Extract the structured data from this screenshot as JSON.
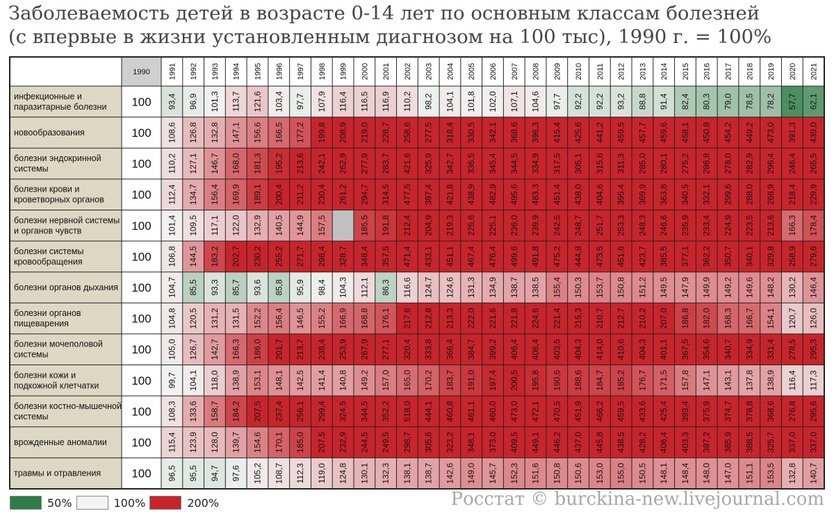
{
  "title": {
    "line1": "Заболеваемость детей в возрасте 0-14 лет по основным классам болезней",
    "line2": "(с впервые в жизни установленным диагнозом на 100 тыс), 1990 г. = 100%"
  },
  "chart_data": {
    "type": "heatmap",
    "base_header": "1990",
    "base_value": "100",
    "years": [
      "1991",
      "1992",
      "1993",
      "1994",
      "1995",
      "1996",
      "1997",
      "1998",
      "1999",
      "2000",
      "2001",
      "2002",
      "2003",
      "2004",
      "2005",
      "2006",
      "2007",
      "2008",
      "2009",
      "2010",
      "2011",
      "2012",
      "2013",
      "2014",
      "2015",
      "2016",
      "2017",
      "2018",
      "2019",
      "2020",
      "2021"
    ],
    "rows": [
      {
        "label": "инфекционные и паразитарные болезни",
        "values": [
          "93,4",
          "96,9",
          "101,3",
          "113,7",
          "121,6",
          "103,4",
          "97,7",
          "107,9",
          "116,4",
          "116,5",
          "116,9",
          "110,2",
          "98,2",
          "104,1",
          "101,8",
          "102,0",
          "107,1",
          "104,6",
          "97,7",
          "92,2",
          "92,2",
          "93,2",
          "88,8",
          "91,4",
          "82,4",
          "80,3",
          "79,0",
          "78,5",
          "78,2",
          "57,7",
          "62,1"
        ]
      },
      {
        "label": "новообразования",
        "values": [
          "108,6",
          "126,8",
          "132,8",
          "147,1",
          "156,6",
          "166,5",
          "177,2",
          "199,8",
          "208,9",
          "219,0",
          "228,7",
          "258,6",
          "277,5",
          "318,4",
          "330,5",
          "342,1",
          "368,6",
          "396,3",
          "415,4",
          "425,6",
          "441,2",
          "459,5",
          "457,7",
          "459,6",
          "458,1",
          "450,8",
          "454,2",
          "449,2",
          "473,0",
          "391,3",
          "439,0"
        ]
      },
      {
        "label": "болезни эндокринной системы",
        "values": [
          "110,2",
          "127,1",
          "146,7",
          "168,0",
          "181,3",
          "195,2",
          "213,6",
          "242,1",
          "262,9",
          "277,9",
          "283,7",
          "421,6",
          "325,9",
          "342,7",
          "336,5",
          "345,4",
          "344,5",
          "334,9",
          "317,5",
          "305,1",
          "315,6",
          "311,3",
          "285,0",
          "280,1",
          "275,2",
          "286,8",
          "278,0",
          "282,9",
          "296,4",
          "246,4",
          "265,5"
        ]
      },
      {
        "label": "болезни крови и кроветворных органов",
        "values": [
          "112,4",
          "134,7",
          "156,4",
          "169,9",
          "189,1",
          "200,4",
          "211,2",
          "230,4",
          "261,2",
          "294,7",
          "314,5",
          "477,5",
          "397,4",
          "421,8",
          "438,9",
          "482,9",
          "495,6",
          "483,3",
          "451,4",
          "438,0",
          "404,6",
          "395,4",
          "369,9",
          "363,8",
          "340,5",
          "332,1",
          "299,6",
          "288,0",
          "268,9",
          "218,4",
          "229,9"
        ]
      },
      {
        "label": "болезни нервной системы и органов чувств",
        "values": [
          "101,4",
          "109,5",
          "117,1",
          "122,0",
          "132,9",
          "140,5",
          "144,9",
          "157,5",
          "",
          "185,5",
          "191,8",
          "212,4",
          "204,9",
          "219,3",
          "225,6",
          "225,1",
          "236,0",
          "239,9",
          "242,5",
          "248,7",
          "251,7",
          "253,3",
          "248,3",
          "246,6",
          "235,9",
          "233,4",
          "224,9",
          "223,5",
          "213,6",
          "166,3",
          "178,4"
        ]
      },
      {
        "label": "болезни системы кровообращения",
        "values": [
          "106,8",
          "144,5",
          "183,2",
          "202,7",
          "230,2",
          "255,2",
          "271,7",
          "298,4",
          "328,7",
          "348,4",
          "357,5",
          "471,4",
          "433,1",
          "451,1",
          "467,4",
          "476,4",
          "499,6",
          "491,8",
          "475,2",
          "444,8",
          "473,5",
          "451,6",
          "423,7",
          "385,5",
          "377,1",
          "362,2",
          "350,7",
          "340,1",
          "329,8",
          "258,9",
          "279,6"
        ]
      },
      {
        "label": "болезни органов дыхания",
        "values": [
          "104,7",
          "85,5",
          "93,3",
          "85,7",
          "93,6",
          "85,8",
          "95,9",
          "98,4",
          "104,3",
          "112,1",
          "86,3",
          "116,6",
          "124,7",
          "124,6",
          "131,3",
          "134,9",
          "138,7",
          "138,5",
          "155,4",
          "150,3",
          "153,7",
          "150,8",
          "151,2",
          "149,5",
          "147,9",
          "149,9",
          "149,2",
          "149,6",
          "148,2",
          "130,2",
          "146,4"
        ]
      },
      {
        "label": "болезни органов пищеварения",
        "values": [
          "104,8",
          "120,5",
          "131,2",
          "131,5",
          "152,2",
          "156,4",
          "146,5",
          "155,2",
          "166,9",
          "168,8",
          "176,1",
          "217,6",
          "212,8",
          "213,3",
          "222,0",
          "221,6",
          "221,8",
          "224,6",
          "221,4",
          "215,3",
          "210,7",
          "212,7",
          "210,2",
          "207,0",
          "186,8",
          "182,0",
          "168,3",
          "166,7",
          "154,1",
          "120,7",
          "126,0"
        ]
      },
      {
        "label": "болезни мочеполовой системы",
        "values": [
          "105,0",
          "126,7",
          "142,7",
          "166,3",
          "186,0",
          "201,7",
          "213,7",
          "238,4",
          "253,9",
          "267,9",
          "277,1",
          "320,4",
          "333,8",
          "366,4",
          "384,7",
          "399,2",
          "406,4",
          "406,4",
          "403,5",
          "404,3",
          "414,0",
          "410,6",
          "404,3",
          "401,1",
          "367,5",
          "354,6",
          "340,7",
          "334,9",
          "331,4",
          "278,5",
          "295,3"
        ]
      },
      {
        "label": "болезни кожи и подкожной клетчатки",
        "values": [
          "99,7",
          "104,1",
          "118,0",
          "138,9",
          "153,1",
          "148,1",
          "142,5",
          "141,4",
          "140,8",
          "149,2",
          "157,0",
          "165,0",
          "170,2",
          "183,7",
          "191,0",
          "197,4",
          "200,5",
          "195,8",
          "190,6",
          "188,6",
          "184,7",
          "185,2",
          "176,7",
          "171,5",
          "157,8",
          "147,1",
          "143,1",
          "137,8",
          "138,9",
          "116,4",
          "117,3"
        ]
      },
      {
        "label": "болезни костно-мышечной системы",
        "values": [
          "108,3",
          "133,6",
          "158,7",
          "184,2",
          "207,5",
          "237,4",
          "256,1",
          "299,4",
          "324,5",
          "344,5",
          "352,2",
          "518,0",
          "444,1",
          "460,8",
          "461,1",
          "460,0",
          "473,0",
          "472,1",
          "470,5",
          "451,9",
          "466,2",
          "459,5",
          "433,6",
          "425,4",
          "393,4",
          "375,9",
          "374,7",
          "378,8",
          "368,6",
          "276,8",
          "295,6"
        ]
      },
      {
        "label": "врожденные аномалии",
        "values": [
          "115,4",
          "123,9",
          "128,0",
          "139,7",
          "154,6",
          "170,1",
          "185,0",
          "207,5",
          "232,9",
          "244,5",
          "249,5",
          "298,7",
          "305,6",
          "323,2",
          "348,1",
          "373,0",
          "409,5",
          "449,1",
          "446,2",
          "437,0",
          "445,8",
          "438,5",
          "428,2",
          "406,4",
          "403,3",
          "387,2",
          "385,9",
          "388,5",
          "325,7",
          "337,0",
          "337,0"
        ]
      },
      {
        "label": "травмы и отравления",
        "values": [
          "96,5",
          "95,5",
          "94,7",
          "97,6",
          "105,2",
          "108,7",
          "112,3",
          "119,0",
          "124,8",
          "130,1",
          "132,3",
          "138,1",
          "138,7",
          "142,6",
          "149,0",
          "145,7",
          "152,3",
          "151,6",
          "150,8",
          "150,6",
          "153,0",
          "155,0",
          "150,5",
          "148,1",
          "148,4",
          "148,0",
          "147,0",
          "151,1",
          "153,5",
          "132,8",
          "140,7"
        ]
      }
    ],
    "color_scale": [
      {
        "value": 50,
        "label": "50%",
        "color": "#2e7d46"
      },
      {
        "value": 100,
        "label": "100%",
        "color": "#f3f3f3"
      },
      {
        "value": 200,
        "label": "200%",
        "color": "#c8242b"
      }
    ],
    "missing_color": "#c0c0c0"
  },
  "source": "Росстат © burckina-new.livejournal.com"
}
